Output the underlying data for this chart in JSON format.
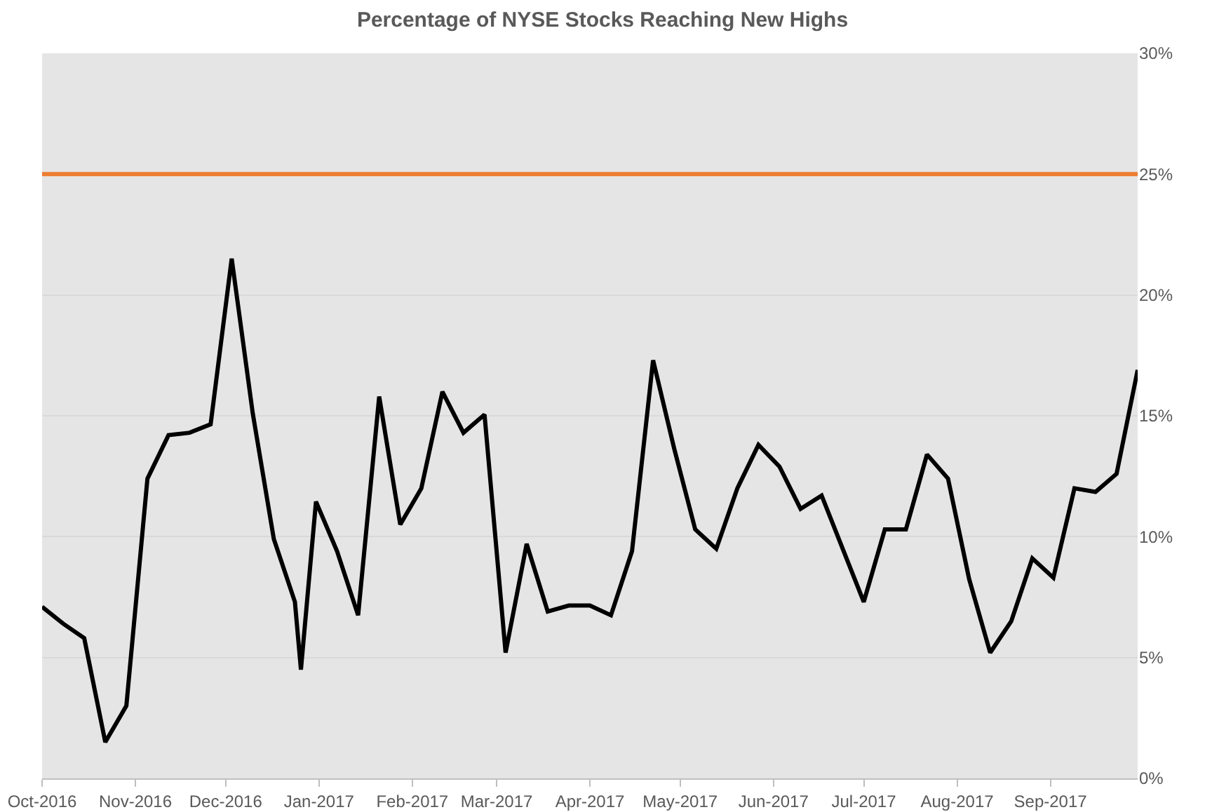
{
  "chart_data": {
    "type": "line",
    "title": "Percentage of NYSE Stocks Reaching New Highs",
    "x": [
      "2016-10-01",
      "2016-10-08",
      "2016-10-15",
      "2016-10-22",
      "2016-10-29",
      "2016-11-05",
      "2016-11-12",
      "2016-11-19",
      "2016-11-26",
      "2016-12-03",
      "2016-12-10",
      "2016-12-17",
      "2016-12-24",
      "2016-12-26",
      "2016-12-31",
      "2017-01-07",
      "2017-01-14",
      "2017-01-21",
      "2017-01-28",
      "2017-02-04",
      "2017-02-11",
      "2017-02-18",
      "2017-02-25",
      "2017-03-04",
      "2017-03-11",
      "2017-03-18",
      "2017-03-25",
      "2017-04-01",
      "2017-04-08",
      "2017-04-15",
      "2017-04-22",
      "2017-04-29",
      "2017-05-06",
      "2017-05-13",
      "2017-05-20",
      "2017-05-27",
      "2017-06-03",
      "2017-06-10",
      "2017-06-17",
      "2017-06-24",
      "2017-07-01",
      "2017-07-08",
      "2017-07-15",
      "2017-07-22",
      "2017-07-29",
      "2017-08-05",
      "2017-08-12",
      "2017-08-19",
      "2017-08-26",
      "2017-09-02",
      "2017-09-09",
      "2017-09-16",
      "2017-09-23",
      "2017-09-30"
    ],
    "series": [
      {
        "color": "#000000",
        "values": [
          7.1,
          6.4,
          5.8,
          1.5,
          3.0,
          12.4,
          14.2,
          14.3,
          14.65,
          21.5,
          15.1,
          9.9,
          7.3,
          4.5,
          11.45,
          9.4,
          6.75,
          15.8,
          10.5,
          12.0,
          16.0,
          14.3,
          15.05,
          5.2,
          9.7,
          6.9,
          7.15,
          7.15,
          6.75,
          9.4,
          17.3,
          13.65,
          10.3,
          9.5,
          12.0,
          13.8,
          12.9,
          11.15,
          11.7,
          9.5,
          7.3,
          10.3,
          10.3,
          13.4,
          12.4,
          8.25,
          5.2,
          6.5,
          9.1,
          8.3,
          12.0,
          11.85,
          12.6,
          16.9
        ]
      }
    ],
    "xlim": [
      "2016-10-01",
      "2017-09-30"
    ],
    "xticks": [
      {
        "value": "2016-10-01",
        "label": "Oct-2016"
      },
      {
        "value": "2016-11-01",
        "label": "Nov-2016"
      },
      {
        "value": "2016-12-01",
        "label": "Dec-2016"
      },
      {
        "value": "2017-01-01",
        "label": "Jan-2017"
      },
      {
        "value": "2017-02-01",
        "label": "Feb-2017"
      },
      {
        "value": "2017-03-01",
        "label": "Mar-2017"
      },
      {
        "value": "2017-04-01",
        "label": "Apr-2017"
      },
      {
        "value": "2017-05-01",
        "label": "May-2017"
      },
      {
        "value": "2017-06-01",
        "label": "Jun-2017"
      },
      {
        "value": "2017-07-01",
        "label": "Jul-2017"
      },
      {
        "value": "2017-08-01",
        "label": "Aug-2017"
      },
      {
        "value": "2017-09-01",
        "label": "Sep-2017"
      }
    ],
    "ylim": [
      0,
      30
    ],
    "yticks": [
      {
        "value": 0,
        "label": "0%"
      },
      {
        "value": 5,
        "label": "5%"
      },
      {
        "value": 10,
        "label": "10%"
      },
      {
        "value": 15,
        "label": "15%"
      },
      {
        "value": 20,
        "label": "20%"
      },
      {
        "value": 25,
        "label": "25%"
      },
      {
        "value": 30,
        "label": "30%"
      }
    ],
    "ref_lines": [
      {
        "axis": "y",
        "value": 25,
        "color": "#ed7d31"
      }
    ],
    "grid": "y",
    "marker": "none",
    "line_style": "solid"
  }
}
